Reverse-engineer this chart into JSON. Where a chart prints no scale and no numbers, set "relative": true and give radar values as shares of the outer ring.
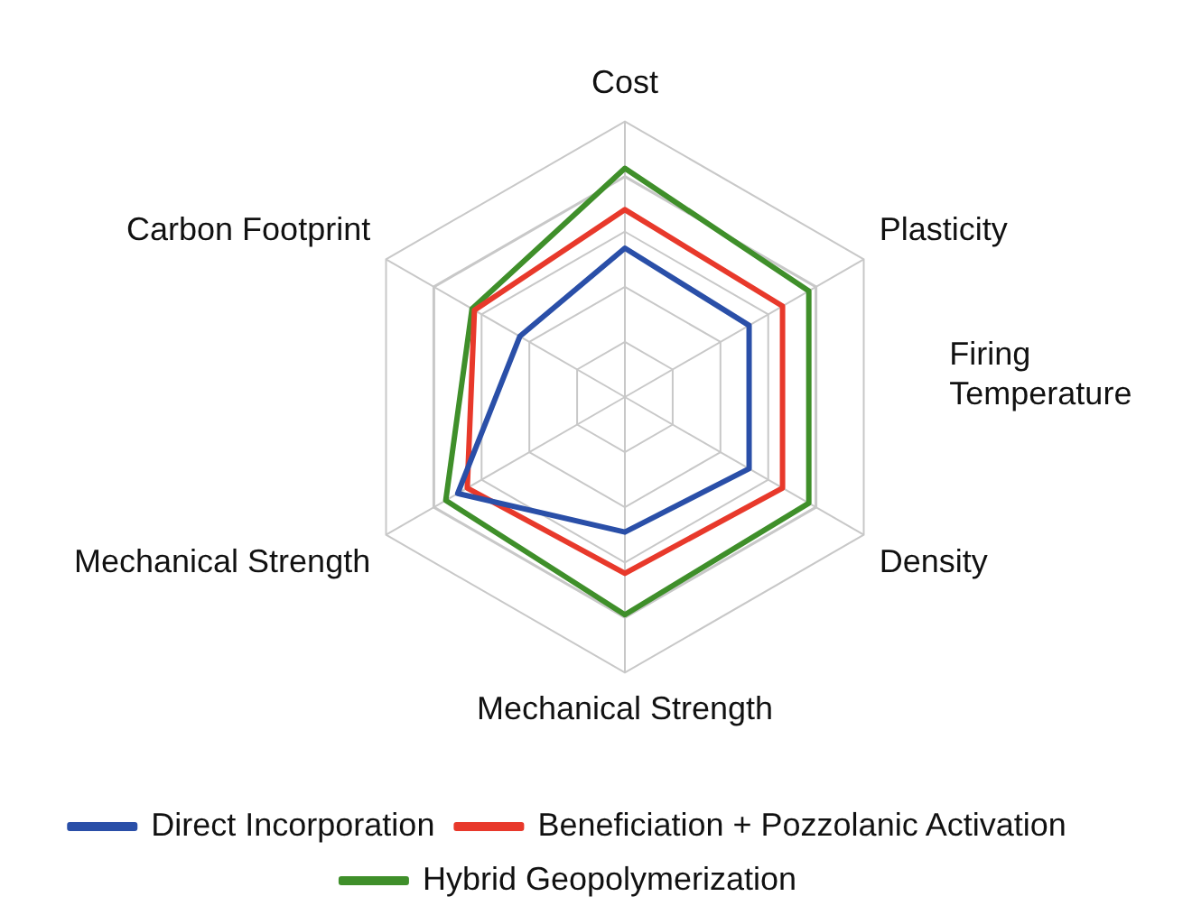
{
  "chart_data": {
    "type": "radar",
    "relative": true,
    "categories": [
      "Cost",
      "Plasticity",
      "Density",
      "Mechanical Strength",
      "Mechanical Strength",
      "Carbon Footprint"
    ],
    "series": [
      {
        "name": "Direct Incorporation",
        "color": "#2a4fa8",
        "values": [
          0.54,
          0.52,
          0.52,
          0.49,
          0.7,
          0.44
        ]
      },
      {
        "name": "Beneficiation + Pozzolanic Activation",
        "color": "#e8392b",
        "values": [
          0.68,
          0.66,
          0.66,
          0.64,
          0.66,
          0.63
        ]
      },
      {
        "name": "Hybrid Geopolymerization",
        "color": "#3f8f2a",
        "values": [
          0.83,
          0.77,
          0.77,
          0.79,
          0.75,
          0.64
        ]
      }
    ],
    "annotations": [
      "Firing Temperature"
    ],
    "grid": true,
    "legend": "bottom",
    "marker": "none",
    "line_style": "solid"
  }
}
